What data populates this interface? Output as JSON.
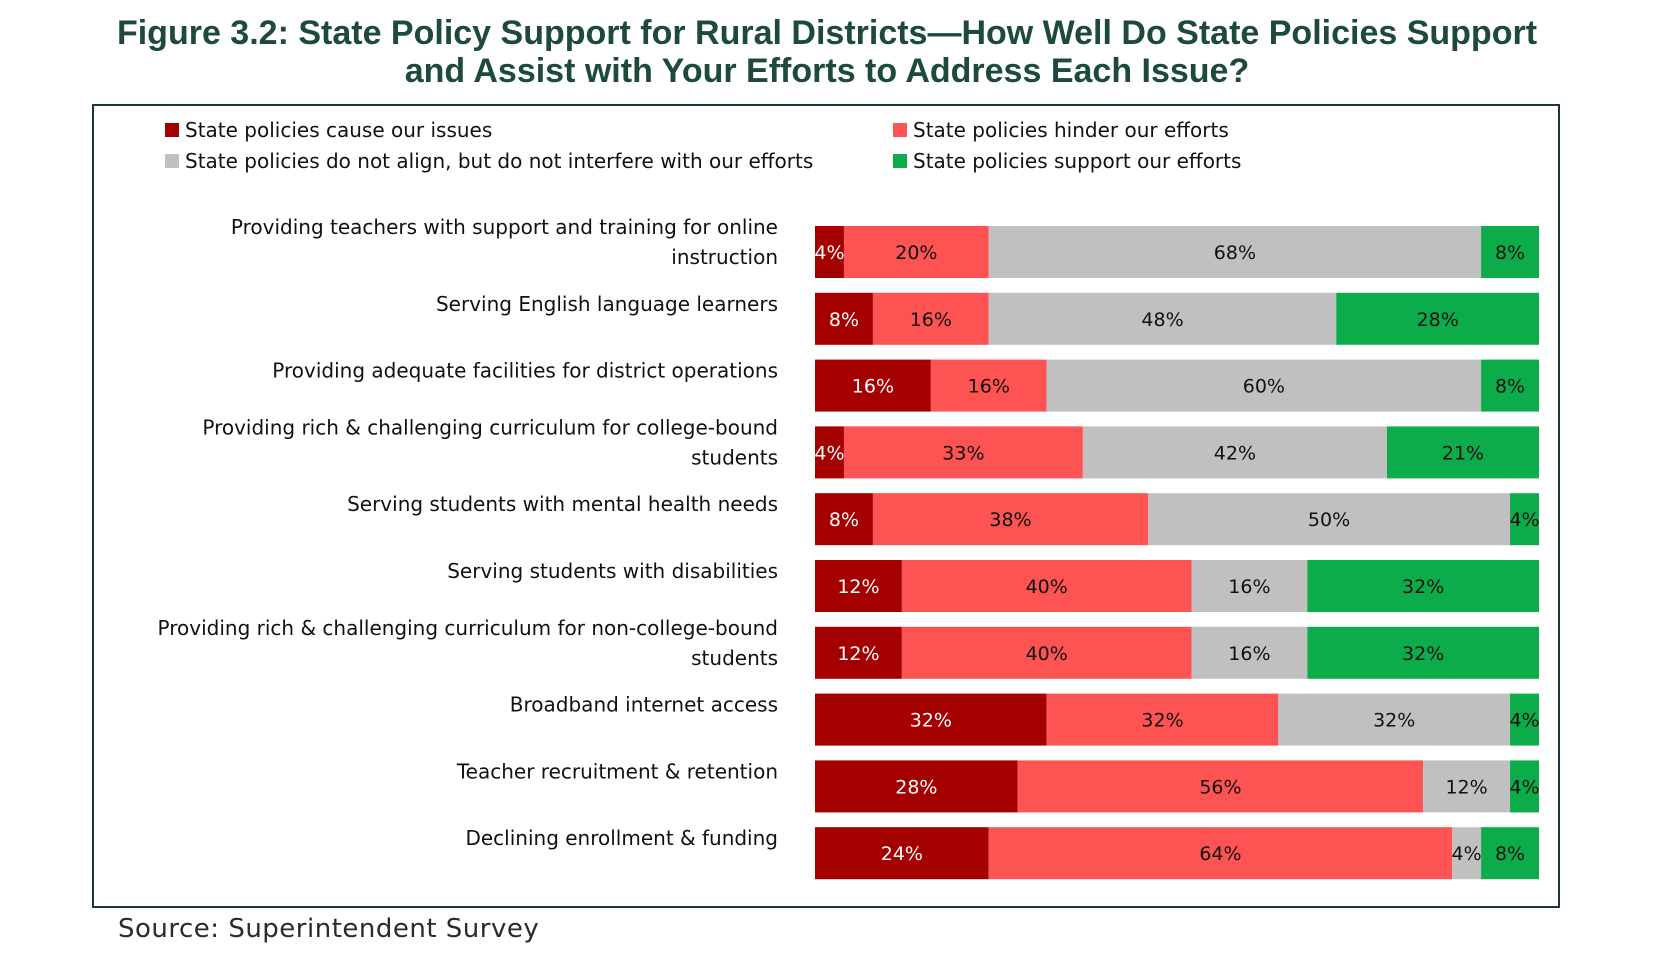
{
  "title_line1": "Figure 3.2: State Policy Support for Rural Districts—How Well Do State Policies Support",
  "title_line2": "and Assist with Your Efforts to Address Each Issue?",
  "source": "Source: Superintendent Survey",
  "colors": {
    "cause": "#a50000",
    "hinder": "#fd5353",
    "not_align": "#c0c0c0",
    "support": "#0dac4b"
  },
  "chart_data": {
    "type": "bar",
    "orientation": "horizontal",
    "stacked": true,
    "normalized": true,
    "categories": [
      [
        "Providing teachers with support and training for online",
        "instruction"
      ],
      [
        "Serving English language learners"
      ],
      [
        "Providing adequate facilities for district operations"
      ],
      [
        "Providing rich & challenging curriculum for college-bound",
        "students"
      ],
      [
        "Serving students with mental health needs"
      ],
      [
        "Serving students with disabilities"
      ],
      [
        "Providing rich & challenging curriculum for non-college-bound",
        "students"
      ],
      [
        "Broadband internet access"
      ],
      [
        "Teacher recruitment & retention"
      ],
      [
        "Declining enrollment & funding"
      ]
    ],
    "series": [
      {
        "name": "State policies cause our issues",
        "color_key": "cause",
        "values": [
          4,
          8,
          16,
          4,
          8,
          12,
          12,
          32,
          28,
          24
        ]
      },
      {
        "name": "State policies hinder our efforts",
        "color_key": "hinder",
        "values": [
          20,
          16,
          16,
          33,
          38,
          40,
          40,
          32,
          56,
          64
        ]
      },
      {
        "name": "State policies do not align, but do not interfere with our efforts",
        "color_key": "not_align",
        "values": [
          68,
          48,
          60,
          42,
          50,
          16,
          16,
          32,
          12,
          4
        ]
      },
      {
        "name": "State policies support our efforts",
        "color_key": "support",
        "values": [
          8,
          28,
          8,
          21,
          4,
          32,
          32,
          4,
          4,
          8
        ]
      }
    ],
    "value_suffix": "%",
    "legend_position": "top",
    "grid": false
  }
}
